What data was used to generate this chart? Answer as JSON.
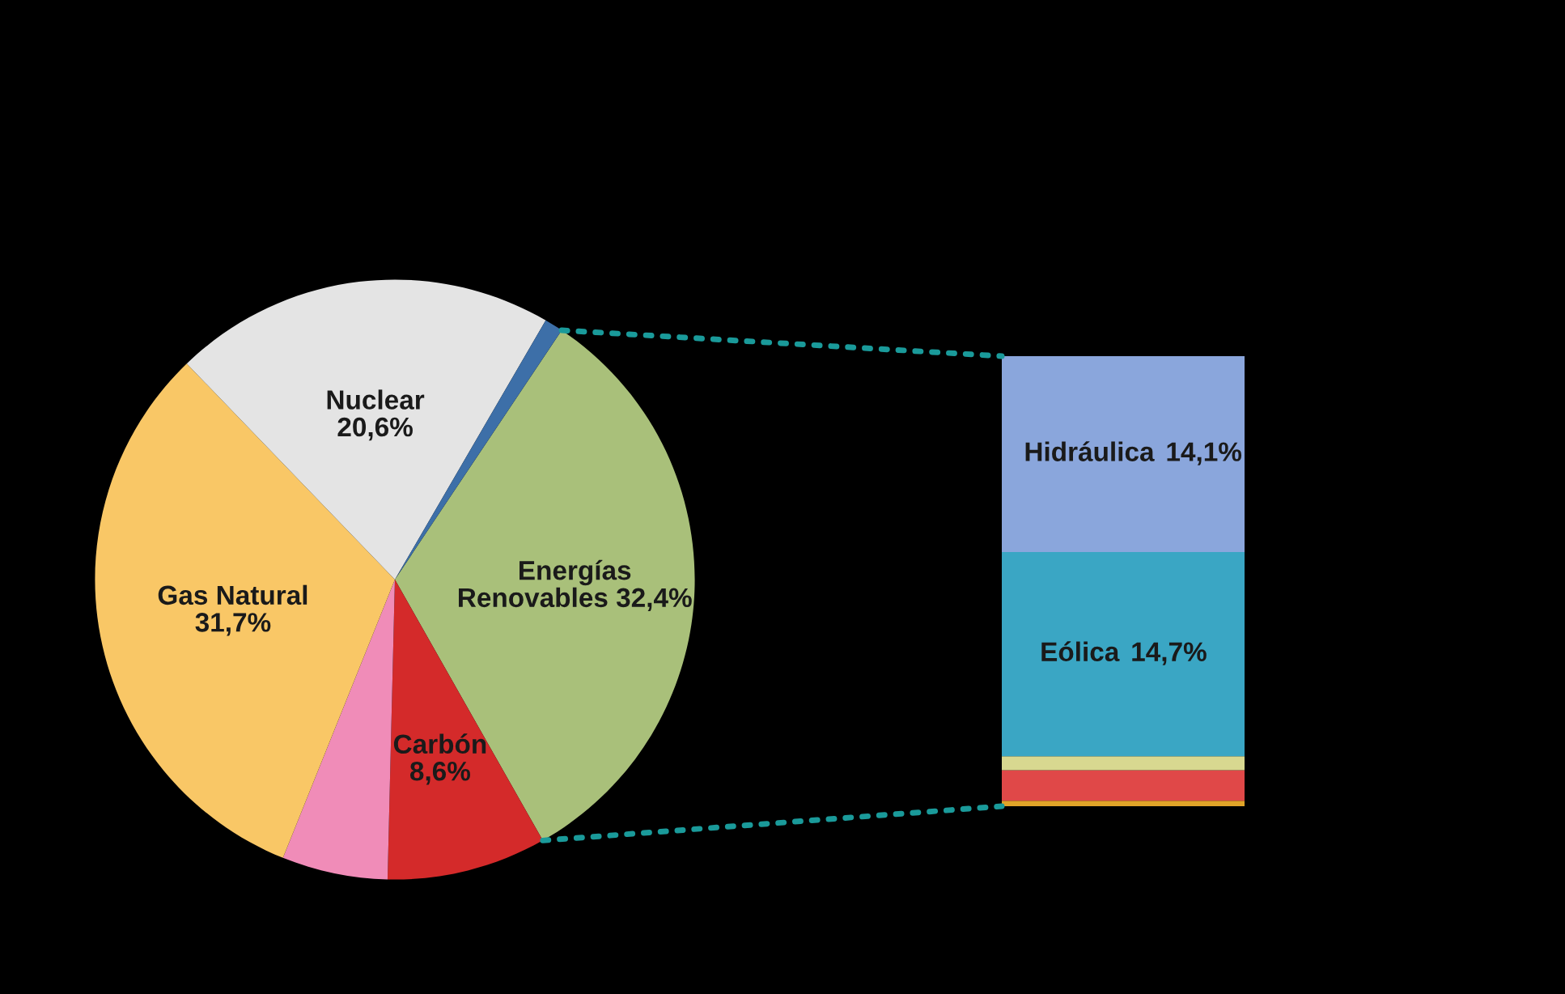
{
  "chart_data": [
    {
      "type": "pie",
      "categories": [
        "Energías Renovables",
        "Carbón",
        null,
        "Gas Natural",
        "Nuclear",
        null
      ],
      "values": [
        32.4,
        8.6,
        5.7,
        31.7,
        20.6,
        1.0
      ],
      "value_labels": [
        "32,4%",
        "8,6%",
        null,
        "31,7%",
        "20,6%",
        null
      ],
      "colors": [
        "#a9c07a",
        "#d42a2a",
        "#f08cb8",
        "#f9c766",
        "#e4e4e4",
        "#3d6fa8"
      ]
    },
    {
      "type": "bar",
      "stacked": true,
      "categories": [
        null
      ],
      "series": [
        {
          "color": "#e0a428",
          "values": [
            0.4
          ]
        },
        {
          "color": "#e04848",
          "values": [
            2.2
          ]
        },
        {
          "color": "#d8d890",
          "values": [
            1.0
          ]
        },
        {
          "name": "Eólica",
          "color": "#3aa6c4",
          "values": [
            14.7
          ],
          "value_labels": [
            "14,7%"
          ]
        },
        {
          "name": "Hidráulica",
          "color": "#8aa6dc",
          "values": [
            14.1
          ],
          "value_labels": [
            "14,1%"
          ]
        }
      ]
    }
  ]
}
